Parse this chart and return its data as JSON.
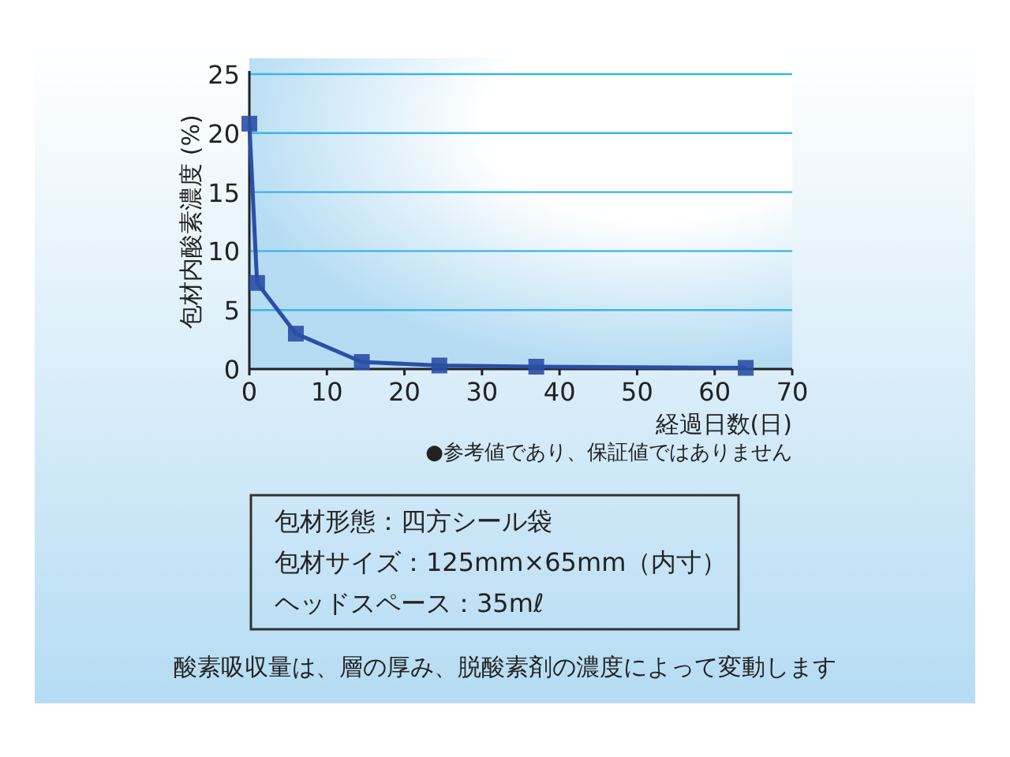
{
  "chart_data": {
    "type": "line",
    "xlabel": "経過日数(日)",
    "ylabel": "包材内酸素濃度 (%)",
    "x": [
      0,
      1,
      6,
      14.5,
      24.5,
      37,
      64
    ],
    "series": [
      {
        "color": "#2a4fa6",
        "values": [
          20.8,
          7.3,
          3.0,
          0.6,
          0.3,
          0.2,
          0.1
        ]
      }
    ],
    "xlim": [
      0,
      70
    ],
    "ylim": [
      0,
      25
    ],
    "xticks": [
      0,
      10,
      20,
      30,
      40,
      50,
      60,
      70
    ],
    "yticks": [
      0,
      5,
      10,
      15,
      20,
      25
    ],
    "grid": "y",
    "marker": "square",
    "line_style": "solid",
    "annotations": [
      "●参考値であり、保証値ではありません",
      "包材形態：四方シール袋",
      "包材サイズ：125mm×65mm（内寸）",
      "ヘッドスペース：35mℓ",
      "酸素吸収量は、層の厚み、脱酸素剤の濃度によって変動します"
    ]
  }
}
